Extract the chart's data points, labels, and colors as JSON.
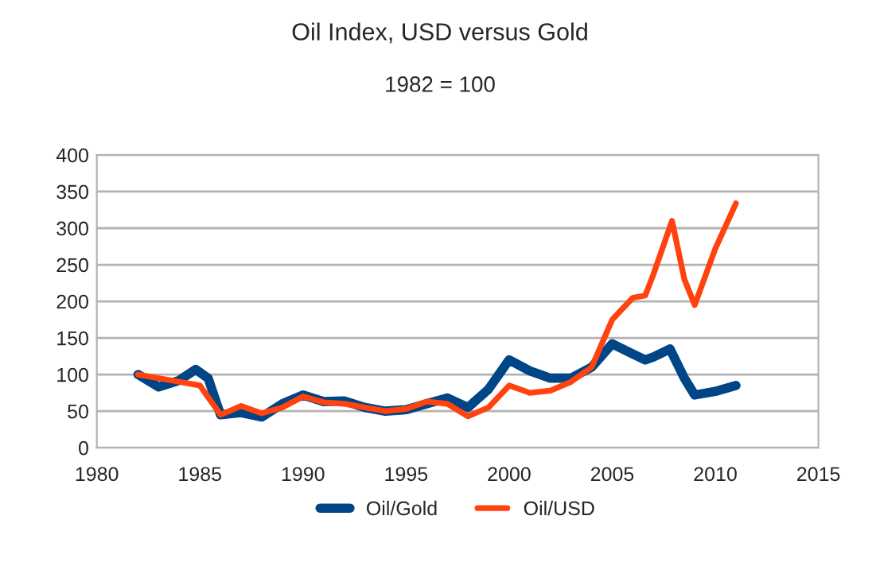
{
  "chart_data": {
    "type": "line",
    "title": "Oil Index, USD versus Gold",
    "subtitle": "1982 = 100",
    "xlim": [
      1980,
      2015
    ],
    "xticks": [
      1980,
      1985,
      1990,
      1995,
      2000,
      2005,
      2010,
      2015
    ],
    "ylim": [
      0,
      400
    ],
    "yticks": [
      0,
      50,
      100,
      150,
      200,
      250,
      300,
      350,
      400
    ],
    "grid": "y",
    "legend": "bottom",
    "marker": "none",
    "line_style": "solid",
    "series": [
      {
        "name": "Oil/Gold",
        "color": "#004586",
        "x": [
          1982,
          1983,
          1984,
          1984.8,
          1985.4,
          1986,
          1987,
          1988,
          1989,
          1990,
          1991,
          1992,
          1993,
          1994,
          1995,
          1996,
          1997,
          1998,
          1999,
          2000,
          2001,
          2002,
          2003,
          2004,
          2005,
          2006,
          2006.6,
          2007,
          2007.8,
          2008.5,
          2009,
          2010,
          2011
        ],
        "values": [
          100,
          83,
          92,
          107,
          95,
          45,
          48,
          42,
          60,
          72,
          63,
          64,
          55,
          50,
          52,
          60,
          68,
          55,
          80,
          120,
          105,
          95,
          95,
          110,
          142,
          128,
          120,
          124,
          135,
          95,
          72,
          77,
          85
        ]
      },
      {
        "name": "Oil/USD",
        "color": "#ff420e",
        "x": [
          1982,
          1983,
          1984,
          1985,
          1986,
          1987,
          1988,
          1989,
          1990,
          1991,
          1992,
          1993,
          1994,
          1995,
          1996,
          1997,
          1998,
          1999,
          2000,
          2001,
          2002,
          2003,
          2004,
          2005,
          2006,
          2006.6,
          2007,
          2007.9,
          2008.5,
          2009,
          2010,
          2011
        ],
        "values": [
          100,
          95,
          90,
          85,
          45,
          57,
          47,
          55,
          70,
          62,
          60,
          55,
          50,
          53,
          63,
          60,
          43,
          55,
          85,
          75,
          78,
          90,
          110,
          175,
          205,
          208,
          237,
          310,
          230,
          195,
          272,
          334
        ]
      }
    ]
  }
}
